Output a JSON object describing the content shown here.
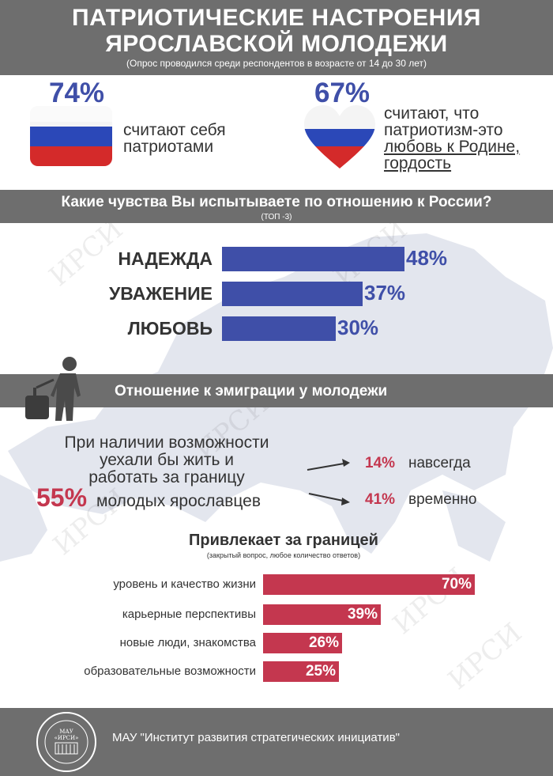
{
  "header": {
    "title_line1": "ПАТРИОТИЧЕСКИЕ НАСТРОЕНИЯ",
    "title_line2": "ЯРОСЛАВСКОЙ МОЛОДЕЖИ",
    "subtitle": "(Опрос проводился среди респондентов  в возрасте от 14 до 30 лет)"
  },
  "stats": {
    "left": {
      "pct": "74%",
      "line1": "считают себя",
      "line2": "патриотами"
    },
    "right": {
      "pct": "67%",
      "line1": "считают, что",
      "line2": "патриотизм-это",
      "line3": "любовь к Родине,",
      "line4": "гордость"
    }
  },
  "feelings": {
    "title": "Какие чувства Вы испытываете по отношению к России?",
    "subtitle": "(ТОП -3)"
  },
  "emigration": {
    "title": "Отношение к эмиграции у молодежи",
    "line1": "При наличии возможности",
    "line2": "уехали бы жить и",
    "line3": "работать за границу",
    "big_pct": "55%",
    "line4": "молодых ярославцев",
    "options": [
      {
        "pct": "14%",
        "label": "навсегда"
      },
      {
        "pct": "41%",
        "label": "временно"
      }
    ]
  },
  "attractions": {
    "title": "Привлекает за границей",
    "subtitle": "(закрытый вопрос, любое количество ответов)"
  },
  "watermark": "ИРСИ",
  "footer": {
    "seal_line1": "МАУ",
    "seal_line2": "«ИРСИ»",
    "text": "МАУ \"Институт развития стратегических инициатив\""
  },
  "colors": {
    "blue": "#3f4fa8",
    "red": "#c4374f",
    "gray": "#6e6e6e"
  },
  "chart_data": [
    {
      "type": "bar",
      "categories": [
        "НАДЕЖДА",
        "УВАЖЕНИЕ",
        "ЛЮБОВЬ"
      ],
      "values": [
        48,
        37,
        30
      ],
      "labels": [
        "48%",
        "37%",
        "30%"
      ]
    },
    {
      "type": "bar",
      "categories": [
        "уровень и качество жизни",
        "карьерные перспективы",
        "новые люди, знакомства",
        "образовательные возможности"
      ],
      "values": [
        70,
        39,
        26,
        25
      ],
      "labels": [
        "70%",
        "39%",
        "26%",
        "25%"
      ]
    }
  ]
}
